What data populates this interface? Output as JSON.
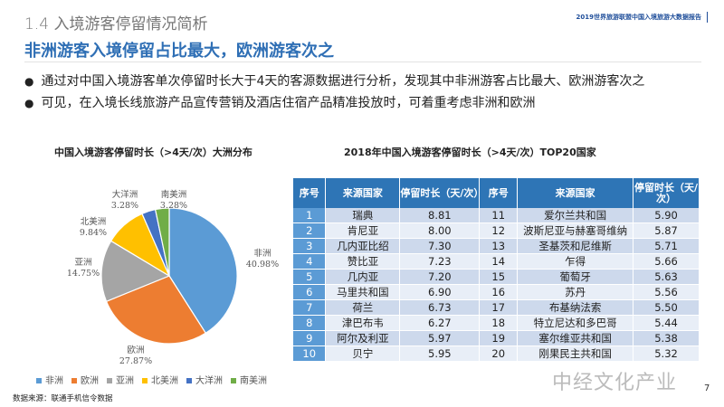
{
  "header": {
    "section": "1.4 入境游客停留情况简析",
    "report": "2019世界旅游联盟中国入境旅游大数据报告"
  },
  "headline": "非洲游客入境停留占比最大，欧洲游客次之",
  "bullets": [
    "通过对中国入境游客单次停留时长大于4天的客源数据进行分析，发现其中非洲游客占比最大、欧洲游客次之",
    "可见，在入境长线旅游产品宣传营销及酒店住宿产品精准投放时，可着重考虑非洲和欧洲"
  ],
  "chart_data": {
    "type": "pie",
    "title": "中国入境游客停留时长（>4天/次）大洲分布",
    "legend_position": "bottom",
    "slices": [
      {
        "name": "非洲",
        "value": 40.98,
        "label": "40.98%",
        "color": "#5b9bd5"
      },
      {
        "name": "欧洲",
        "value": 27.87,
        "label": "27.87%",
        "color": "#ed7d31"
      },
      {
        "name": "亚洲",
        "value": 14.75,
        "label": "14.75%",
        "color": "#a5a5a5"
      },
      {
        "name": "北美洲",
        "value": 9.84,
        "label": "9.84%",
        "color": "#ffc000"
      },
      {
        "name": "大洋洲",
        "value": 3.28,
        "label": "3.28%",
        "color": "#4472c4"
      },
      {
        "name": "南美洲",
        "value": 3.28,
        "label": "3.28%",
        "color": "#70ad47"
      }
    ]
  },
  "table": {
    "title": "2018年中国入境游客停留时长（>4天/次）TOP20国家",
    "headers": [
      "序号",
      "来源国家",
      "停留时长（天/次）",
      "序号",
      "来源国家",
      "停留时长（天/次）"
    ],
    "rows": [
      [
        "1",
        "瑞典",
        "8.81",
        "11",
        "爱尔兰共和国",
        "5.90"
      ],
      [
        "2",
        "肯尼亚",
        "8.00",
        "12",
        "波斯尼亚与赫塞哥维纳",
        "5.87"
      ],
      [
        "3",
        "几内亚比绍",
        "7.30",
        "13",
        "圣基茨和尼维斯",
        "5.71"
      ],
      [
        "4",
        "赞比亚",
        "7.23",
        "14",
        "乍得",
        "5.66"
      ],
      [
        "5",
        "几内亚",
        "7.20",
        "15",
        "葡萄牙",
        "5.63"
      ],
      [
        "6",
        "马里共和国",
        "6.90",
        "16",
        "苏丹",
        "5.56"
      ],
      [
        "7",
        "荷兰",
        "6.73",
        "17",
        "布基纳法索",
        "5.50"
      ],
      [
        "8",
        "津巴布韦",
        "6.27",
        "18",
        "特立尼达和多巴哥",
        "5.44"
      ],
      [
        "9",
        "阿尔及利亚",
        "5.97",
        "19",
        "塞尔维亚共和国",
        "5.38"
      ],
      [
        "10",
        "贝宁",
        "5.95",
        "20",
        "刚果民主共和国",
        "5.32"
      ]
    ]
  },
  "footer": {
    "source": "数据来源：联通手机信令数据",
    "watermark": "中经文化产业",
    "page": "7"
  }
}
